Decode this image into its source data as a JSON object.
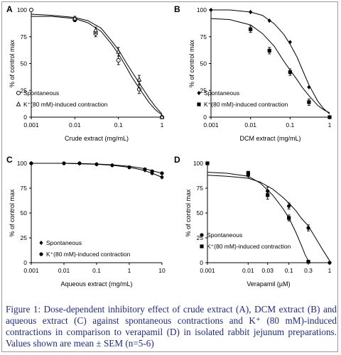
{
  "caption": "Figure 1: Dose-dependent inhibitory effect of crude extract (A), DCM extract (B) and aqueous extract (C) against spontaneous contractions and K⁺ (80 mM)-induced contractions in comparison to verapamil (D) in isolated rabbit jejunum preparations. Values shown are mean ±  SEM (n=5-6)",
  "colors": {
    "ink": "#000000",
    "caption": "#1a2a9e",
    "frame": "#9a9a9a"
  },
  "chart_data": [
    {
      "panel": "A",
      "type": "scatter",
      "xlabel": "Crude extract (mg/mL)",
      "ylabel": "% of control max",
      "x_scale": "log",
      "xlim": [
        0.001,
        1
      ],
      "xticks": [
        "0.001",
        "0.01",
        "0.1",
        "1"
      ],
      "ylim": [
        0,
        100
      ],
      "yticks": [
        "0",
        "25",
        "50",
        "75",
        "100"
      ],
      "legend_position": "bottom-left",
      "series": [
        {
          "name": "Spontaneous",
          "marker": "open-circle",
          "x": [
            0.001,
            0.01,
            0.03,
            0.1,
            0.3,
            1
          ],
          "y": [
            100,
            91,
            78,
            53,
            26,
            0
          ],
          "err": [
            0,
            2,
            3,
            4,
            4,
            0
          ],
          "fit": [
            [
              0.001,
              96
            ],
            [
              0.003,
              95
            ],
            [
              0.01,
              93
            ],
            [
              0.02,
              90
            ],
            [
              0.04,
              83
            ],
            [
              0.07,
              71
            ],
            [
              0.1,
              63
            ],
            [
              0.15,
              51
            ],
            [
              0.2,
              43
            ],
            [
              0.3,
              32
            ],
            [
              0.5,
              18
            ],
            [
              0.7,
              10
            ],
            [
              1,
              3
            ]
          ]
        },
        {
          "name": "K⁺(80 mM)-induced contraction",
          "marker": "open-triangle",
          "x": [
            0.01,
            0.03,
            0.1,
            0.3,
            1
          ],
          "y": [
            92,
            81,
            61,
            35,
            0
          ],
          "err": [
            2,
            3,
            4,
            4,
            0
          ],
          "fit": [
            [
              0.001,
              94
            ],
            [
              0.003,
              94
            ],
            [
              0.01,
              92
            ],
            [
              0.02,
              88
            ],
            [
              0.04,
              80
            ],
            [
              0.07,
              68
            ],
            [
              0.1,
              59
            ],
            [
              0.15,
              47
            ],
            [
              0.2,
              38
            ],
            [
              0.3,
              27
            ],
            [
              0.5,
              14
            ],
            [
              0.7,
              7
            ],
            [
              1,
              2
            ]
          ]
        }
      ]
    },
    {
      "panel": "B",
      "type": "scatter",
      "xlabel": "DCM extract (mg/mL)",
      "ylabel": "% of control max",
      "x_scale": "log",
      "xlim": [
        0.001,
        1
      ],
      "xticks": [
        "0.001",
        "0.01",
        "0.1",
        "1"
      ],
      "ylim": [
        0,
        100
      ],
      "yticks": [
        "0",
        "25",
        "50",
        "75",
        "100"
      ],
      "legend_position": "bottom-left",
      "series": [
        {
          "name": "Spontaneous",
          "marker": "filled-diamond",
          "x": [
            0.001,
            0.01,
            0.03,
            0.1,
            0.3
          ],
          "y": [
            100,
            98,
            90,
            70,
            28
          ],
          "err": [
            0,
            0,
            0,
            0,
            0
          ],
          "fit": [
            [
              0.001,
              100
            ],
            [
              0.003,
              100
            ],
            [
              0.01,
              98
            ],
            [
              0.02,
              95
            ],
            [
              0.04,
              87
            ],
            [
              0.07,
              77
            ],
            [
              0.1,
              68
            ],
            [
              0.15,
              56
            ],
            [
              0.2,
              45
            ],
            [
              0.3,
              30
            ],
            [
              0.5,
              15
            ],
            [
              0.7,
              8
            ],
            [
              1,
              3
            ]
          ]
        },
        {
          "name": "K⁺(80 mM)-induced contraction",
          "marker": "filled-square",
          "x": [
            0.01,
            0.03,
            0.1,
            0.3,
            1
          ],
          "y": [
            82,
            62,
            42,
            14,
            0
          ],
          "err": [
            3,
            3,
            3,
            3,
            0
          ],
          "fit": [
            [
              0.001,
              92
            ],
            [
              0.003,
              91
            ],
            [
              0.01,
              86
            ],
            [
              0.02,
              78
            ],
            [
              0.04,
              66
            ],
            [
              0.07,
              52
            ],
            [
              0.1,
              44
            ],
            [
              0.15,
              35
            ],
            [
              0.2,
              28
            ],
            [
              0.3,
              20
            ],
            [
              0.5,
              11
            ],
            [
              0.7,
              7
            ],
            [
              1,
              4
            ]
          ]
        }
      ]
    },
    {
      "panel": "C",
      "type": "scatter",
      "xlabel": "Aqueous extract (mg/mL)",
      "ylabel": "% of control max",
      "x_scale": "log",
      "xlim": [
        0.001,
        10
      ],
      "xticks": [
        "0.001",
        "0.01",
        "0.1",
        "1",
        "10"
      ],
      "ylim": [
        0,
        100
      ],
      "yticks": [
        "0",
        "25",
        "50",
        "75",
        "100"
      ],
      "legend_position": "bottom-left",
      "series": [
        {
          "name": "Spontaneous",
          "marker": "filled-diamond",
          "x": [
            0.001,
            0.01,
            0.03,
            0.1,
            0.3,
            1,
            3,
            5,
            10
          ],
          "y": [
            100,
            100,
            100,
            99,
            98,
            96,
            93,
            90,
            86
          ],
          "err": [
            0,
            0,
            0,
            0,
            0,
            0,
            0,
            1,
            1
          ],
          "fit": [
            [
              0.001,
              100
            ],
            [
              0.01,
              100
            ],
            [
              0.03,
              99.5
            ],
            [
              0.1,
              99
            ],
            [
              0.3,
              98
            ],
            [
              1,
              96
            ],
            [
              2,
              94
            ],
            [
              3,
              92.5
            ],
            [
              5,
              90
            ],
            [
              10,
              86
            ]
          ]
        },
        {
          "name": "K⁺(80 mM)-induced contraction",
          "marker": "filled-circle",
          "x": [
            0.001,
            0.01,
            0.03,
            0.1,
            0.3,
            1,
            3,
            5,
            10
          ],
          "y": [
            100,
            100,
            100,
            99,
            98,
            96,
            94,
            92,
            90
          ],
          "err": [
            0,
            0,
            0,
            0,
            0,
            0,
            0,
            1,
            1
          ],
          "fit": [
            [
              0.001,
              100
            ],
            [
              0.01,
              100
            ],
            [
              0.03,
              99.8
            ],
            [
              0.1,
              99.3
            ],
            [
              0.3,
              98.5
            ],
            [
              1,
              97
            ],
            [
              2,
              95.5
            ],
            [
              3,
              94.5
            ],
            [
              5,
              92.5
            ],
            [
              10,
              90
            ]
          ]
        }
      ]
    },
    {
      "panel": "D",
      "type": "scatter",
      "xlabel": "Verapamil (µM)",
      "ylabel": "% of control max",
      "x_scale": "log",
      "xlim": [
        0.001,
        1
      ],
      "xticks": [
        "0.001",
        "0.01",
        "0.03",
        "0.1",
        "0.3",
        "1"
      ],
      "ylim": [
        0,
        100
      ],
      "yticks": [
        "0",
        "25",
        "50",
        "75",
        "100"
      ],
      "legend_position": "bottom-left",
      "series": [
        {
          "name": "Spontaneous",
          "marker": "filled-circle",
          "x": [
            0.01,
            0.03,
            0.1,
            0.3,
            1
          ],
          "y": [
            88,
            72,
            57,
            35,
            0
          ],
          "err": [
            3,
            4,
            3,
            3,
            0
          ],
          "fit": [
            [
              0.001,
              88
            ],
            [
              0.003,
              87
            ],
            [
              0.01,
              85
            ],
            [
              0.02,
              81
            ],
            [
              0.04,
              74
            ],
            [
              0.07,
              66
            ],
            [
              0.1,
              60
            ],
            [
              0.15,
              52
            ],
            [
              0.2,
              45
            ],
            [
              0.3,
              37
            ],
            [
              0.5,
              22
            ],
            [
              0.7,
              12
            ],
            [
              1,
              2
            ]
          ]
        },
        {
          "name": "K⁺(80 mM)-induced contraction",
          "marker": "filled-square",
          "x": [
            0.001,
            0.01,
            0.03,
            0.1,
            0.3
          ],
          "y": [
            100,
            90,
            68,
            45,
            1
          ],
          "err": [
            0,
            2,
            4,
            3,
            0
          ],
          "fit": [
            [
              0.001,
              91
            ],
            [
              0.003,
              90
            ],
            [
              0.01,
              87
            ],
            [
              0.02,
              80
            ],
            [
              0.04,
              68
            ],
            [
              0.07,
              55
            ],
            [
              0.1,
              45
            ],
            [
              0.15,
              30
            ],
            [
              0.2,
              18
            ],
            [
              0.25,
              8
            ],
            [
              0.3,
              2
            ]
          ]
        }
      ]
    }
  ]
}
